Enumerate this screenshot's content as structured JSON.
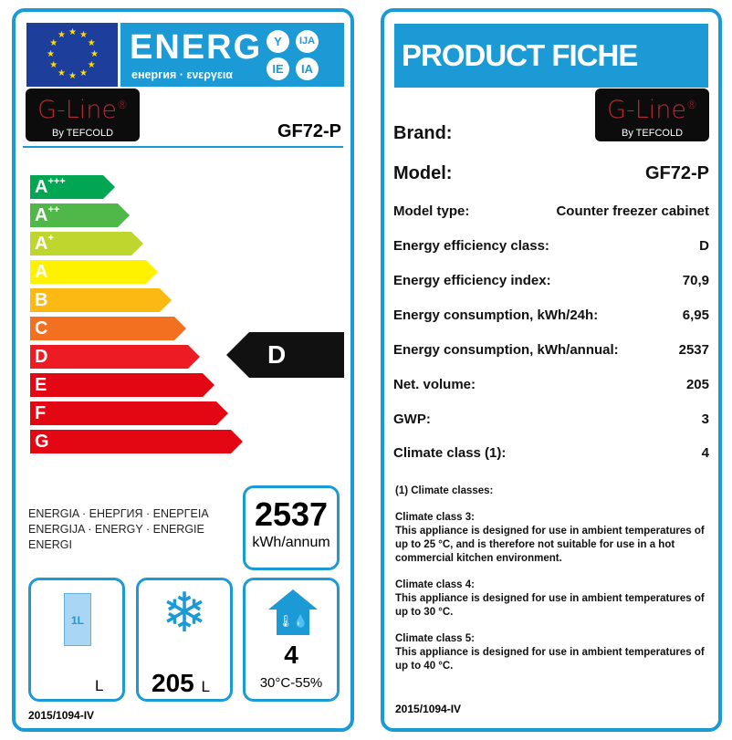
{
  "label": {
    "header": {
      "energ": "ENERG",
      "subtitle": "енергия · ενεργεια",
      "circles": [
        "Y",
        "IJA",
        "IE",
        "IA"
      ]
    },
    "brand_logo": {
      "name": "G-Line",
      "by": "By TEFCOLD"
    },
    "model": "GF72-P",
    "classes": [
      {
        "label": "A",
        "sup": "+++",
        "color": "#00a651"
      },
      {
        "label": "A",
        "sup": "++",
        "color": "#50b848"
      },
      {
        "label": "A",
        "sup": "+",
        "color": "#bfd62f"
      },
      {
        "label": "A",
        "sup": "",
        "color": "#fff200"
      },
      {
        "label": "B",
        "sup": "",
        "color": "#fdb913"
      },
      {
        "label": "C",
        "sup": "",
        "color": "#f37021"
      },
      {
        "label": "D",
        "sup": "",
        "color": "#ed1c24"
      },
      {
        "label": "E",
        "sup": "",
        "color": "#e30613"
      },
      {
        "label": "F",
        "sup": "",
        "color": "#e30613"
      },
      {
        "label": "G",
        "sup": "",
        "color": "#e30613"
      }
    ],
    "rating": "D",
    "energy_words": [
      "ENERGIA · ЕНЕРГИЯ · ΕΝΕΡΓΕΙΑ",
      "ENERGIJA · ENERGY · ENERGIE",
      "ENERGI"
    ],
    "consumption": {
      "value": "2537",
      "unit": "kWh/annum"
    },
    "chill_volume": {
      "icon_text": "1L",
      "unit": "L"
    },
    "freeze_volume": {
      "value": "205",
      "unit": "L"
    },
    "climate": {
      "value": "4",
      "conditions": "30°C-55%"
    },
    "regulation": "2015/1094-IV"
  },
  "fiche": {
    "title": "PRODUCT FICHE",
    "brand_logo": {
      "name": "G-Line",
      "by": "By TEFCOLD"
    },
    "rows": [
      {
        "label": "Brand:",
        "value": ""
      },
      {
        "label": "Model:",
        "value": "GF72-P"
      },
      {
        "label": "Model type:",
        "value": "Counter freezer cabinet"
      },
      {
        "label": "Energy efficiency class:",
        "value": "D"
      },
      {
        "label": "Energy efficiency index:",
        "value": "70,9"
      },
      {
        "label": "Energy consumption, kWh/24h:",
        "value": "6,95"
      },
      {
        "label": "Energy consumption, kWh/annual:",
        "value": "2537"
      },
      {
        "label": "Net. volume:",
        "value": "205"
      },
      {
        "label": "GWP:",
        "value": "3"
      },
      {
        "label": "Climate class (1):",
        "value": "4"
      }
    ],
    "notes": [
      {
        "title": "(1) Climate classes:",
        "text": ""
      },
      {
        "title": "Climate class 3:",
        "text": "This appliance is designed for use in ambient temperatures of up to 25 °C, and is therefore not suitable for use in a hot commercial kitchen environment."
      },
      {
        "title": "Climate class 4:",
        "text": "This appliance is designed for use in ambient temperatures of up to 30 °C."
      },
      {
        "title": "Climate class 5:",
        "text": "This appliance is designed for use in ambient temperatures of up to 40 °C."
      }
    ],
    "regulation": "2015/1094-IV"
  },
  "colors": {
    "accent": "#1b9ad6",
    "eu_blue": "#1d3e9a",
    "logo_red": "#b02a38"
  }
}
